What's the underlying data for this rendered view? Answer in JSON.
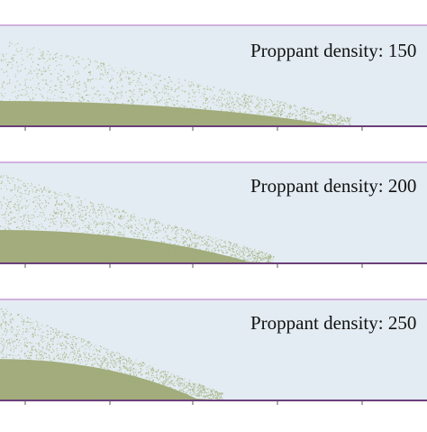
{
  "colors": {
    "background": "#e3ecf2",
    "bed": "#a2ac7c",
    "bed_dark": "#8f9a68",
    "particles": "#9fae78",
    "frame_top": "#c79bd6",
    "frame_bottom": "#6b3f7a",
    "tick": "#555555"
  },
  "panels": [
    {
      "label": "Proppant density: 150",
      "bed_front": 0.77,
      "cloud_front": 0.82
    },
    {
      "label": "Proppant density: 200",
      "bed_front": 0.58,
      "cloud_front": 0.64
    },
    {
      "label": "Proppant density: 250",
      "bed_front": 0.46,
      "cloud_front": 0.52
    }
  ]
}
